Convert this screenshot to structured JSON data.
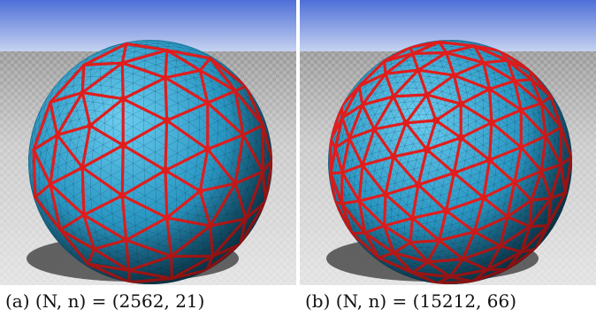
{
  "colors": {
    "sky_top": "#4f6fd8",
    "sky_bottom": "#cdd9f2",
    "floor": "#c9c9c9",
    "sphere": "#2a98c4",
    "mesh_edges": "#e01d1d",
    "shadow": "#4a4a4a"
  },
  "panels": [
    {
      "caption": "(a) (N, n) = (2562, 21)",
      "parameters": {
        "N": 2562,
        "n": 21
      }
    },
    {
      "caption": "(b) (N, n) = (15212, 66)",
      "parameters": {
        "N": 15212,
        "n": 66
      }
    }
  ]
}
